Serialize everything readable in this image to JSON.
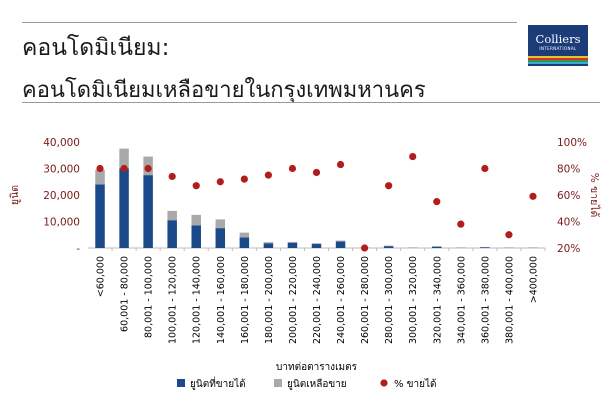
{
  "header": {
    "title": "คอนโดมิเนียม:",
    "subtitle": "คอนโดมิเนียมเหลือขายในกรุงเทพมหานคร"
  },
  "logo": {
    "name": "Colliers",
    "tagline": "INTERNATIONAL"
  },
  "colors": {
    "sold_bar": "#1b4a8a",
    "unsold_bar": "#a9a9a9",
    "pct_marker": "#b11d1d",
    "axis_text": "#7a1a17",
    "logo_bg": "#1b3c78"
  },
  "chart_data": {
    "type": "bar",
    "stacked": true,
    "title": "",
    "xlabel": "บาทต่อตารางเมตร",
    "ylabel": "ยูนิต",
    "y2label": "% ขายได้",
    "ylim": [
      0,
      40000
    ],
    "y2lim": [
      20,
      100
    ],
    "y_ticks": [
      "-",
      "10,000",
      "20,000",
      "30,000",
      "40,000"
    ],
    "y2_ticks": [
      "20%",
      "40%",
      "60%",
      "80%",
      "100%"
    ],
    "grid": false,
    "legend_position": "bottom",
    "categories": [
      "<60,000",
      "60,001 - 80,000",
      "80,001 - 100,000",
      "100,001 - 120,000",
      "120,001 - 140,000",
      "140,001 - 160,000",
      "160,001 - 180,000",
      "180,001 - 200,000",
      "200,001 - 220,000",
      "220,001 - 240,000",
      "240,001 - 260,000",
      "260,001 - 280,000",
      "280,001 - 300,000",
      "300,001 - 320,000",
      "320,001 - 340,000",
      "340,001 - 360,000",
      "360,001 - 380,000",
      "380,001 - 400,000",
      ">400,000"
    ],
    "series": [
      {
        "name": "ยูนิตที่ขายได้",
        "kind": "bar",
        "axis": "left",
        "values": [
          24000,
          30000,
          27500,
          10500,
          8500,
          7500,
          4000,
          1800,
          2000,
          1500,
          2500,
          100,
          700,
          100,
          500,
          100,
          300,
          100,
          100
        ]
      },
      {
        "name": "ยูนิตเหลือขาย",
        "kind": "bar",
        "axis": "left",
        "values": [
          5500,
          7500,
          7000,
          3500,
          4000,
          3300,
          1800,
          400,
          300,
          300,
          300,
          100,
          200,
          50,
          200,
          100,
          100,
          100,
          50
        ]
      },
      {
        "name": "% ขายได้",
        "kind": "scatter",
        "axis": "right",
        "values": [
          80,
          80,
          80,
          74,
          67,
          70,
          72,
          75,
          80,
          77,
          83,
          20,
          67,
          89,
          55,
          38,
          80,
          30,
          59
        ]
      }
    ]
  }
}
